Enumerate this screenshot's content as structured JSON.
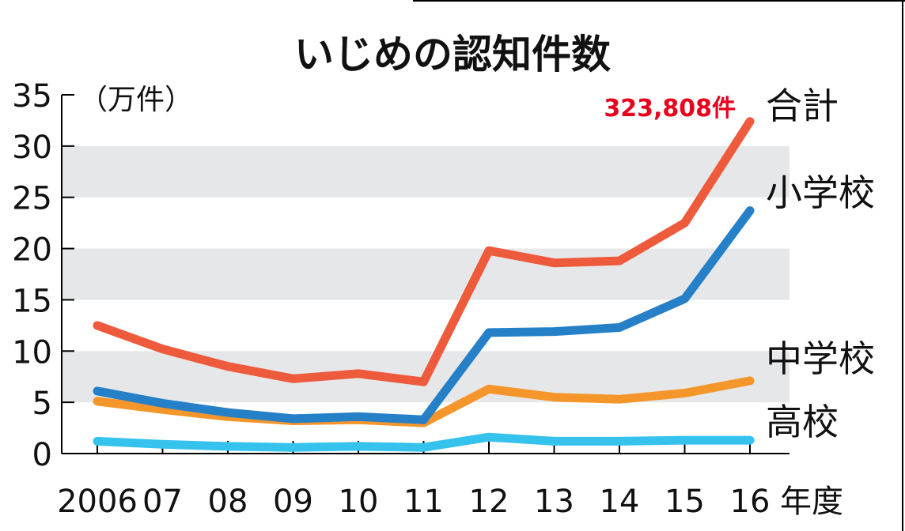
{
  "chart_data": {
    "type": "line",
    "title": "いじめの認知件数",
    "unit_label": "（万件）",
    "x_suffix": "年度",
    "categories": [
      "2006",
      "07",
      "08",
      "09",
      "10",
      "11",
      "12",
      "13",
      "14",
      "15",
      "16"
    ],
    "ylim": [
      0,
      35
    ],
    "yticks": [
      0,
      5,
      10,
      15,
      20,
      25,
      30,
      35
    ],
    "grid": "alternating horizontal bands",
    "series": [
      {
        "name": "合計",
        "color": "#ee5a3c",
        "values": [
          12.5,
          10.2,
          8.5,
          7.3,
          7.8,
          7.0,
          19.8,
          18.6,
          18.8,
          22.5,
          32.4
        ]
      },
      {
        "name": "小学校",
        "color": "#2680c8",
        "values": [
          6.1,
          4.9,
          4.0,
          3.4,
          3.6,
          3.3,
          11.8,
          11.9,
          12.3,
          15.1,
          23.7
        ]
      },
      {
        "name": "中学校",
        "color": "#f5962a",
        "values": [
          5.1,
          4.3,
          3.6,
          3.2,
          3.3,
          3.0,
          6.3,
          5.5,
          5.3,
          5.9,
          7.1
        ]
      },
      {
        "name": "高校",
        "color": "#35c3ee",
        "values": [
          1.2,
          0.9,
          0.7,
          0.6,
          0.7,
          0.6,
          1.6,
          1.2,
          1.2,
          1.3,
          1.3
        ]
      }
    ],
    "annotation": {
      "text": "323,808件",
      "color": "#e8001c"
    }
  }
}
